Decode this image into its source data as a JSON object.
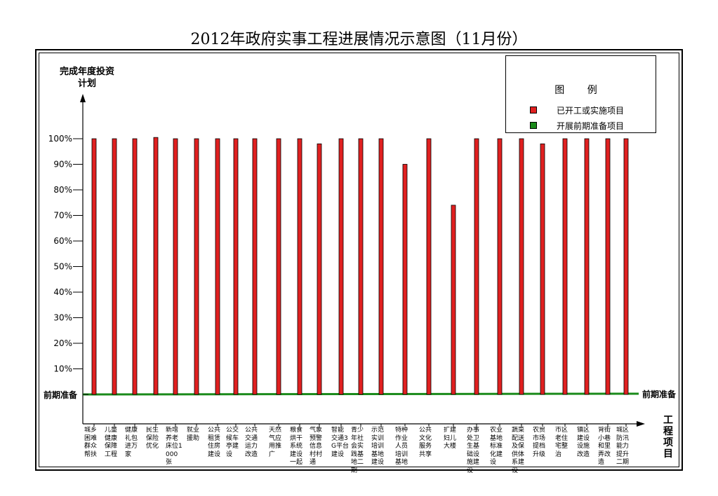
{
  "title": "2012年政府实事工程进展情况示意图（11月份）",
  "chart_data": {
    "type": "bar",
    "title": "2012年政府实事工程进展情况示意图（11月份）",
    "ylabel": "完成年度投资计划",
    "xlabel": "工程项目",
    "baseline_label": "前期准备",
    "ylim": [
      0,
      100
    ],
    "yticks": [
      "10%",
      "20%",
      "30%",
      "40%",
      "50%",
      "60%",
      "70%",
      "80%",
      "90%",
      "100%"
    ],
    "legend": {
      "title": "图 例",
      "items": [
        "已开工或实施项目",
        "开展前期准备项目"
      ],
      "position": "top-right"
    },
    "colors": {
      "started": "#e02020",
      "prep": "#1a8a1a"
    },
    "categories": [
      "城乡困难群众帮扶",
      "儿童健康保障工程",
      "健康礼包进万家",
      "民生保险优化",
      "新增养老床位1000张",
      "就业援助",
      "公共租赁住房建设",
      "公交候车亭建设",
      "公共交通运力改造",
      "天然气应用推广",
      "粮食烘干系统建设一起",
      "气象预警信息村村通",
      "智能交通3G平台建设",
      "青少年社会实践基地二期",
      "示范实训培训基地建设",
      "特种作业人员培训基地",
      "公共文化服务共享",
      "扩建妇儿大楼",
      "办事处卫生基础设施建设",
      "农业基地标准化建设",
      "蔬菜配送及保供体系建设",
      "农贸市场提档升级",
      "市区老住宅整治",
      "镇区建设设施改造",
      "背街小巷和里弄改造",
      "城区防汛能力提升二期"
    ],
    "series": [
      {
        "values": [
          100,
          100,
          100,
          100.5,
          100,
          100,
          100,
          100,
          100,
          100,
          100,
          98,
          100,
          100,
          100,
          90,
          100,
          74,
          100,
          100,
          100,
          98,
          100,
          100,
          100,
          100
        ]
      }
    ]
  }
}
